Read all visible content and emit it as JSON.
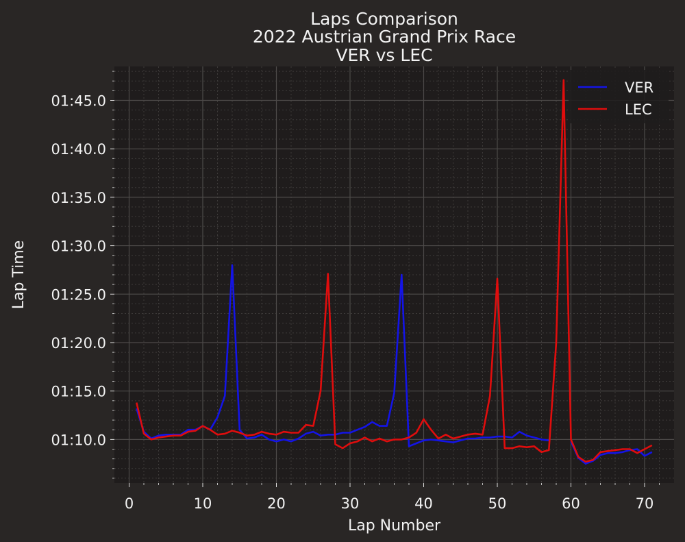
{
  "chart_data": {
    "type": "line",
    "title": [
      "Laps Comparison",
      "2022 Austrian Grand Prix Race",
      "VER vs LEC"
    ],
    "xlabel": "Lap Number",
    "ylabel": "Lap Time",
    "xlim": [
      -2,
      74
    ],
    "ylim_seconds": [
      65.5,
      108.5
    ],
    "xticks": [
      0,
      10,
      20,
      30,
      40,
      50,
      60,
      70
    ],
    "yticks": [
      {
        "value": 70,
        "label": "01:10.0"
      },
      {
        "value": 75,
        "label": "01:15.0"
      },
      {
        "value": 80,
        "label": "01:20.0"
      },
      {
        "value": 85,
        "label": "01:25.0"
      },
      {
        "value": 90,
        "label": "01:30.0"
      },
      {
        "value": 95,
        "label": "01:35.0"
      },
      {
        "value": 100,
        "label": "01:40.0"
      },
      {
        "value": 105,
        "label": "01:45.0"
      }
    ],
    "grid": true,
    "background": "#1f1c1c",
    "legend_position": "top-right",
    "series": [
      {
        "name": "VER",
        "color": "#1414e6",
        "x": [
          1,
          2,
          3,
          4,
          5,
          6,
          7,
          8,
          9,
          10,
          11,
          12,
          13,
          14,
          15,
          16,
          17,
          18,
          19,
          20,
          21,
          22,
          23,
          24,
          25,
          26,
          27,
          28,
          29,
          30,
          31,
          32,
          33,
          34,
          35,
          36,
          37,
          38,
          39,
          40,
          41,
          42,
          43,
          44,
          45,
          46,
          47,
          48,
          49,
          50,
          51,
          52,
          53,
          54,
          55,
          56,
          57,
          58,
          59,
          60,
          61,
          62,
          63,
          64,
          65,
          66,
          67,
          68,
          69,
          70,
          71
        ],
        "y": [
          73.2,
          70.8,
          70.1,
          70.4,
          70.5,
          70.5,
          70.5,
          71.0,
          71.0,
          71.4,
          71.0,
          72.3,
          74.5,
          88.0,
          71.0,
          70.1,
          70.2,
          70.5,
          70.0,
          69.8,
          70.0,
          69.8,
          70.1,
          70.6,
          70.8,
          70.4,
          70.5,
          70.5,
          70.7,
          70.7,
          71.0,
          71.3,
          71.8,
          71.4,
          71.4,
          74.8,
          87.0,
          69.3,
          69.6,
          69.9,
          70.0,
          69.9,
          69.8,
          69.7,
          69.9,
          70.1,
          70.1,
          70.2,
          70.2,
          70.3,
          70.3,
          70.2,
          70.8,
          70.4,
          70.2,
          70.0,
          69.9,
          null,
          null,
          69.8,
          68.1,
          67.5,
          67.8,
          68.4,
          68.6,
          68.6,
          68.7,
          68.9,
          69.0,
          68.3,
          68.7
        ]
      },
      {
        "name": "LEC",
        "color": "#e00d0d",
        "x": [
          1,
          2,
          3,
          4,
          5,
          6,
          7,
          8,
          9,
          10,
          11,
          12,
          13,
          14,
          15,
          16,
          17,
          18,
          19,
          20,
          21,
          22,
          23,
          24,
          25,
          26,
          27,
          28,
          29,
          30,
          31,
          32,
          33,
          34,
          35,
          36,
          37,
          38,
          39,
          40,
          41,
          42,
          43,
          44,
          45,
          46,
          47,
          48,
          49,
          50,
          51,
          52,
          53,
          54,
          55,
          56,
          57,
          58,
          59,
          60,
          61,
          62,
          63,
          64,
          65,
          66,
          67,
          68,
          69,
          70,
          71
        ],
        "y": [
          73.8,
          70.6,
          70.0,
          70.2,
          70.3,
          70.4,
          70.4,
          70.8,
          70.9,
          71.4,
          71.0,
          70.5,
          70.6,
          70.9,
          70.7,
          70.4,
          70.5,
          70.8,
          70.6,
          70.5,
          70.8,
          70.7,
          70.7,
          71.5,
          71.4,
          75.0,
          87.1,
          69.5,
          69.1,
          69.6,
          69.8,
          70.2,
          69.8,
          70.1,
          69.8,
          70.0,
          70.0,
          70.2,
          70.7,
          72.1,
          71.0,
          70.1,
          70.5,
          70.1,
          70.3,
          70.5,
          70.6,
          70.5,
          74.5,
          86.6,
          69.1,
          69.1,
          69.3,
          69.2,
          69.3,
          68.7,
          68.9,
          80.0,
          107.1,
          70.0,
          68.2,
          67.7,
          67.9,
          68.7,
          68.8,
          68.9,
          69.0,
          69.0,
          68.6,
          69.0,
          69.4
        ]
      }
    ]
  }
}
